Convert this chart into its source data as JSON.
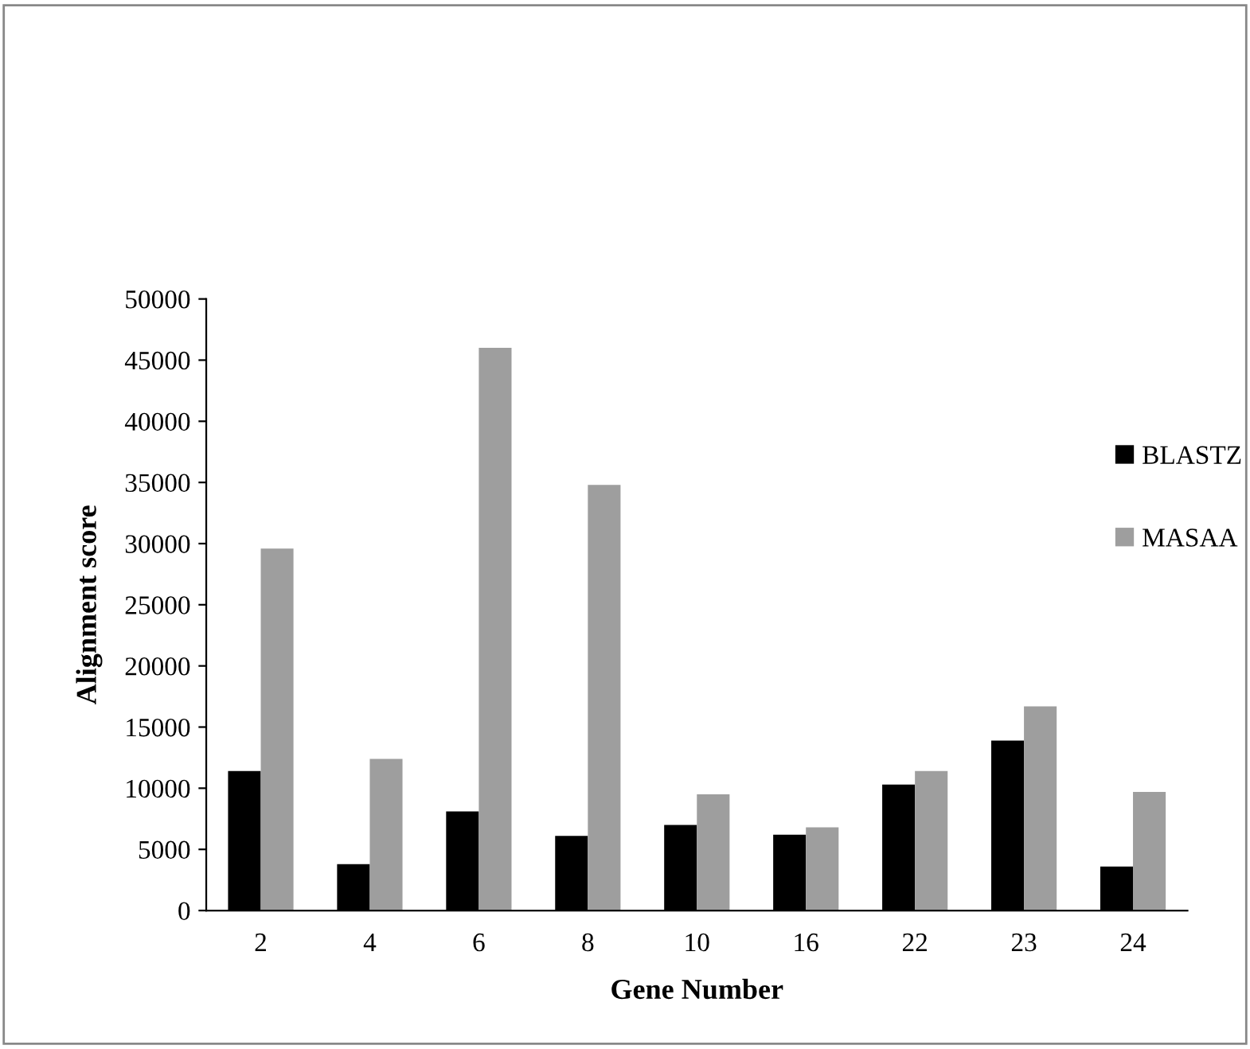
{
  "chart_data": {
    "type": "bar",
    "xlabel": "Gene Number",
    "ylabel": "Alignment score",
    "categories": [
      "2",
      "4",
      "6",
      "8",
      "10",
      "16",
      "22",
      "23",
      "24"
    ],
    "series": [
      {
        "name": "BLASTZ",
        "color": "#000000",
        "values": [
          11400,
          3800,
          8100,
          6100,
          7000,
          6200,
          10300,
          13900,
          3600
        ]
      },
      {
        "name": "MASAA",
        "color": "#9e9e9e",
        "values": [
          29600,
          12400,
          46000,
          34800,
          9500,
          6800,
          11400,
          16700,
          9700
        ]
      }
    ],
    "ylim": [
      0,
      50000
    ],
    "yticks": [
      0,
      5000,
      10000,
      15000,
      20000,
      25000,
      30000,
      35000,
      40000,
      45000,
      50000
    ],
    "grid": false,
    "legend": "right"
  }
}
